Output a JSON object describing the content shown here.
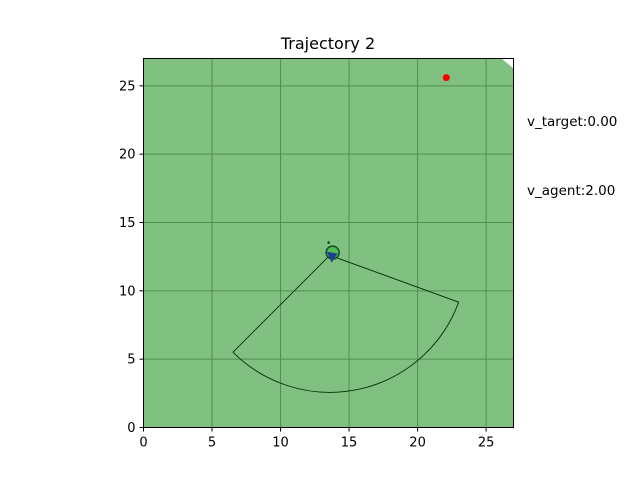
{
  "chart_data": {
    "type": "scatter",
    "title": "Trajectory 2",
    "xlim": [
      0,
      27
    ],
    "ylim": [
      0,
      27
    ],
    "x_ticks": [
      0,
      5,
      10,
      15,
      20,
      25
    ],
    "y_ticks": [
      0,
      5,
      10,
      15,
      20,
      25
    ],
    "grid": true,
    "background_color": "#80c080",
    "grid_color": "#4f8f4f",
    "target": {
      "x": 22.1,
      "y": 25.6,
      "color": "#ff0000"
    },
    "agent": {
      "x": 13.8,
      "y": 12.8,
      "heading_deg": -105,
      "color": "#1f3f8f"
    },
    "fov": {
      "apex": [
        13.6,
        12.6
      ],
      "radius": 10.0,
      "start_deg": -135,
      "end_deg": -20,
      "edge_color": "#003300"
    },
    "annotations": {
      "v_target": "v_target:0.00",
      "v_agent": "v_agent:2.00"
    }
  }
}
